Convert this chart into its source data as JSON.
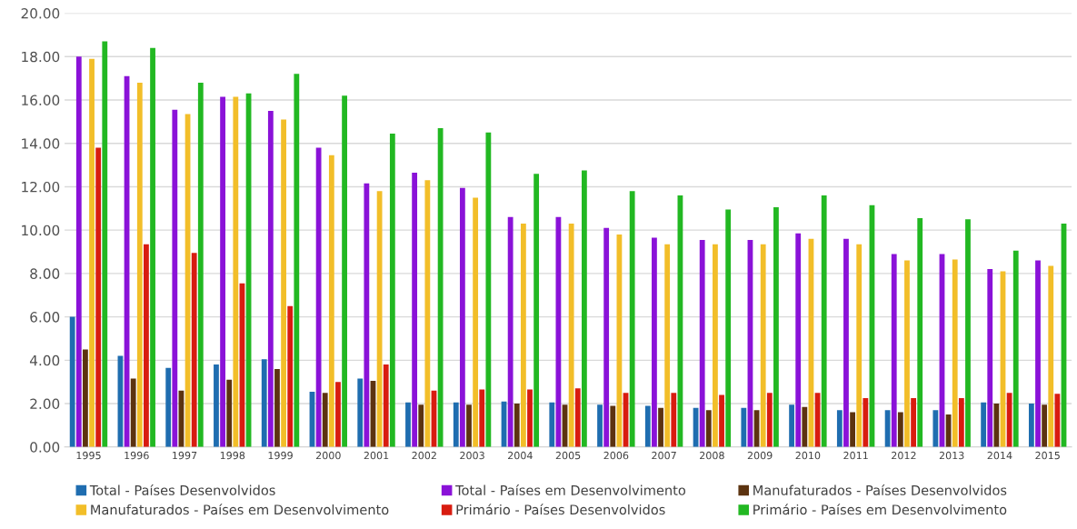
{
  "chart_data": {
    "type": "bar",
    "categories": [
      "1995",
      "1996",
      "1997",
      "1998",
      "1999",
      "2000",
      "2001",
      "2002",
      "2003",
      "2004",
      "2005",
      "2006",
      "2007",
      "2008",
      "2009",
      "2010",
      "2011",
      "2012",
      "2013",
      "2014",
      "2015"
    ],
    "series": [
      {
        "name": "Total - Países Desenvolvidos",
        "color": "#1f6db0",
        "values": [
          6.0,
          4.2,
          3.65,
          3.8,
          4.05,
          2.55,
          3.15,
          2.05,
          2.05,
          2.1,
          2.05,
          1.95,
          1.9,
          1.8,
          1.8,
          1.95,
          1.7,
          1.7,
          1.7,
          2.05,
          2.0
        ]
      },
      {
        "name": "Total - Países em Desenvolvimento",
        "color": "#8a12d8",
        "values": [
          18.0,
          17.1,
          15.55,
          16.15,
          15.5,
          13.8,
          12.15,
          12.65,
          11.95,
          10.6,
          10.6,
          10.1,
          9.65,
          9.55,
          9.55,
          9.85,
          9.6,
          8.9,
          8.9,
          8.2,
          8.6
        ]
      },
      {
        "name": "Manufaturados - Países Desenvolvidos",
        "color": "#5c3310",
        "values": [
          4.5,
          3.15,
          2.6,
          3.1,
          3.6,
          2.5,
          3.05,
          1.95,
          1.95,
          2.0,
          1.95,
          1.9,
          1.8,
          1.7,
          1.7,
          1.85,
          1.6,
          1.6,
          1.5,
          2.0,
          1.95
        ]
      },
      {
        "name": "Manufaturados - Países em Desenvolvimento",
        "color": "#f2be29",
        "values": [
          17.9,
          16.8,
          15.35,
          16.15,
          15.1,
          13.45,
          11.8,
          12.3,
          11.5,
          10.3,
          10.3,
          9.8,
          9.35,
          9.35,
          9.35,
          9.6,
          9.35,
          8.6,
          8.65,
          8.1,
          8.35
        ]
      },
      {
        "name": "Primário - Países Desenvolvidos",
        "color": "#d81c10",
        "values": [
          13.8,
          9.35,
          8.95,
          7.55,
          6.5,
          3.0,
          3.8,
          2.6,
          2.65,
          2.65,
          2.7,
          2.5,
          2.5,
          2.4,
          2.5,
          2.5,
          2.25,
          2.25,
          2.25,
          2.5,
          2.45
        ]
      },
      {
        "name": "Primário - Países em Desenvolvimento",
        "color": "#22b822",
        "values": [
          18.7,
          18.4,
          16.8,
          16.3,
          17.2,
          16.2,
          14.45,
          14.7,
          14.5,
          12.6,
          12.75,
          11.8,
          11.6,
          10.95,
          11.05,
          11.6,
          11.15,
          10.55,
          10.5,
          9.05,
          10.3
        ]
      }
    ],
    "ylim": [
      0,
      20
    ],
    "yticks": [
      {
        "value": 0,
        "label": "0.00"
      },
      {
        "value": 2,
        "label": "2.00"
      },
      {
        "value": 4,
        "label": "4.00"
      },
      {
        "value": 6,
        "label": "6.00"
      },
      {
        "value": 8,
        "label": "8.00"
      },
      {
        "value": 10,
        "label": "10.00"
      },
      {
        "value": 12,
        "label": "12.00"
      },
      {
        "value": 14,
        "label": "14.00"
      },
      {
        "value": 16,
        "label": "16.00"
      },
      {
        "value": 18,
        "label": "18.00"
      },
      {
        "value": 20,
        "label": "20.00"
      }
    ],
    "grid": "y",
    "legend": "bottom"
  }
}
